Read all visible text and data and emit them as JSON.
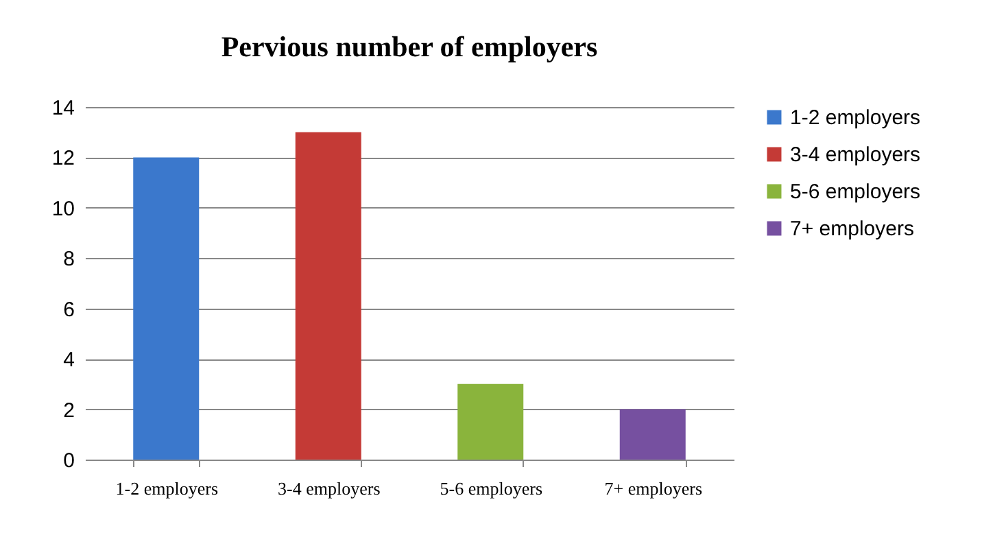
{
  "chart_data": {
    "type": "bar",
    "title": "Pervious number of employers",
    "categories": [
      "1-2 employers",
      "3-4 employers",
      "5-6 employers",
      "7+ employers"
    ],
    "series": [
      {
        "name": "1-2 employers",
        "color": "#3b78cc",
        "values": [
          12,
          null,
          null,
          null
        ]
      },
      {
        "name": "3-4 employers",
        "color": "#c43a36",
        "values": [
          null,
          13,
          null,
          null
        ]
      },
      {
        "name": "5-6 employers",
        "color": "#8ab43c",
        "values": [
          null,
          null,
          3,
          null
        ]
      },
      {
        "name": "7+ employers",
        "color": "#7650a0",
        "values": [
          null,
          null,
          null,
          2
        ]
      }
    ],
    "stacked": true,
    "ylim": [
      0,
      14
    ],
    "yticks": [
      0,
      2,
      4,
      6,
      8,
      10,
      12,
      14
    ],
    "grid": "y",
    "legend": "right"
  }
}
